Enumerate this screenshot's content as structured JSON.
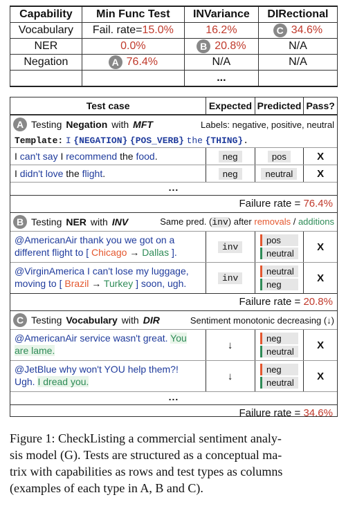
{
  "top_table": {
    "headers": [
      "Capability",
      "Min Func Test",
      "INVariance",
      "DIRectional"
    ],
    "rows": [
      {
        "capability": "Vocabulary",
        "mft": "Fail. rate=15.0%",
        "mft_prefix": "Fail. rate=",
        "mft_value": "15.0%",
        "inv": "16.2%",
        "dir": "34.6%",
        "dir_badge": "C"
      },
      {
        "capability": "NER",
        "mft": "0.0%",
        "inv": "20.8%",
        "inv_badge": "B",
        "dir": "N/A"
      },
      {
        "capability": "Negation",
        "mft": "76.4%",
        "mft_badge": "A",
        "inv": "N/A",
        "dir": "N/A"
      }
    ],
    "ellipsis": "..."
  },
  "panel": {
    "headers": {
      "test_case": "Test case",
      "expected": "Expected",
      "predicted": "Predicted",
      "pass": "Pass?"
    },
    "sections": [
      {
        "badge": "A",
        "title_prefix": "Testing",
        "capability": "Negation",
        "title_mid": "with",
        "test_type": "MFT",
        "right_note": "Labels: negative, positive, neutral",
        "template": {
          "label": "Template:",
          "parts": [
            "I",
            "{NEGATION}",
            "{POS_VERB}",
            "the",
            "{THING}",
            "."
          ]
        },
        "rows": [
          {
            "text_parts": [
              "I ",
              "can't say",
              " I ",
              "recommend",
              " the ",
              "food",
              "."
            ],
            "expected": "neg",
            "predicted": [
              "pos"
            ],
            "pass": "X"
          },
          {
            "text_parts": [
              "I ",
              "didn't",
              " ",
              "love",
              " the ",
              "flight",
              "."
            ],
            "expected": "neg",
            "predicted": [
              "neutral"
            ],
            "pass": "X"
          }
        ],
        "ellipsis": "...",
        "failure_label": "Failure rate =",
        "failure_value": "76.4%"
      },
      {
        "badge": "B",
        "title_prefix": "Testing",
        "capability": "NER",
        "title_mid": "with",
        "test_type": "INV",
        "right_note_parts": [
          "Same pred. (",
          "inv",
          ") after ",
          "removals",
          " / ",
          "additions"
        ],
        "rows": [
          {
            "line1": "@AmericanAir thank you we got on a",
            "line2_pre": "different flight to [ ",
            "removed": "Chicago",
            "arrow": "→",
            "added": "Dallas",
            "line2_post": " ].",
            "expected": "inv",
            "predicted": [
              "pos",
              "neutral"
            ],
            "pass": "X"
          },
          {
            "line1": "@VirginAmerica I can't lose my luggage,",
            "line2_pre": "moving to [ ",
            "removed": "Brazil",
            "arrow": "→",
            "added": "Turkey",
            "line2_post": " ] soon, ugh.",
            "expected": "inv",
            "predicted": [
              "neutral",
              "neg"
            ],
            "pass": "X"
          }
        ],
        "failure_label": "Failure rate =",
        "failure_value": "20.8%"
      },
      {
        "badge": "C",
        "title_prefix": "Testing",
        "capability": "Vocabulary",
        "title_mid": "with",
        "test_type": "DIR",
        "right_note": "Sentiment monotonic decreasing (↓)",
        "rows": [
          {
            "line1_pre": "@AmericanAir service wasn't great. ",
            "line1_add": "You",
            "line2_add": "are lame.",
            "expected": "↓",
            "predicted": [
              "neg",
              "neutral"
            ],
            "pass": "X"
          },
          {
            "line1_pre": "@JetBlue why won't YOU help them?!",
            "line2_pre": "Ugh. ",
            "line2_add": "I dread you.",
            "expected": "↓",
            "predicted": [
              "neg",
              "neutral"
            ],
            "pass": "X"
          }
        ],
        "ellipsis": "...",
        "failure_label": "Failure rate =",
        "failure_value": "34.6%"
      }
    ]
  },
  "caption": {
    "line1": "Figure 1: CheckListing a commercial sentiment analy-",
    "line2": "sis model (G). Tests are structured as a conceptual ma-",
    "line3": "trix with capabilities as rows and test types as columns",
    "line4": "(examples of each type in A, B and C)."
  }
}
